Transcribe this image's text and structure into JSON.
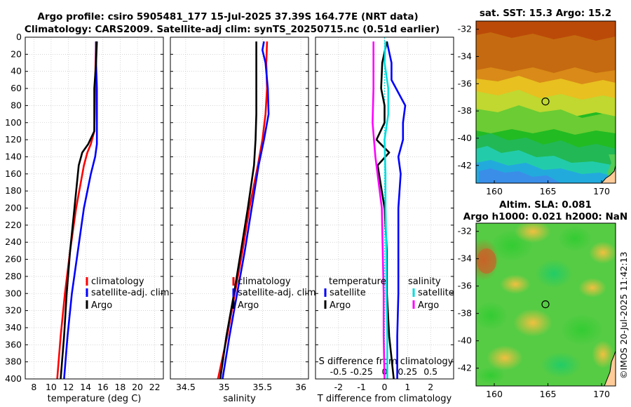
{
  "title": {
    "line1": "Argo profile: csiro 5905481_177 15-Jul-2025 37.39S 164.77E (NRT data)",
    "line2": "Climatology: CARS2009. Satellite-adj clim: synTS_20250715.nc (0.51d earlier)"
  },
  "watermark": "©IMOS 20-Jul-2025 11:42:13",
  "colors": {
    "climatology": "#ff0000",
    "satellite": "#0000ff",
    "argo": "#000000",
    "sal_sat": "#00dddd",
    "sal_argo": "#ff00ff"
  },
  "chart_data": [
    {
      "type": "line",
      "name": "temperature",
      "xlabel": "temperature (deg C)",
      "ylabel": "",
      "xlim": [
        7,
        23
      ],
      "ylim": [
        0,
        400
      ],
      "y_reversed": true,
      "xticks": [
        "8",
        "10",
        "12",
        "14",
        "16",
        "18",
        "20",
        "22"
      ],
      "yticks": [
        "0",
        "20",
        "40",
        "60",
        "80",
        "100",
        "120",
        "140",
        "160",
        "180",
        "200",
        "220",
        "240",
        "260",
        "280",
        "300",
        "320",
        "340",
        "360",
        "380",
        "400"
      ],
      "legend": [
        "climatology",
        "satellite-adj. clim",
        "Argo"
      ],
      "series": [
        {
          "name": "climatology",
          "color": "#ff0000",
          "depth": [
            5,
            30,
            60,
            90,
            110,
            125,
            135,
            150,
            200,
            250,
            300,
            350,
            400
          ],
          "values": [
            15.2,
            15.15,
            15.1,
            15.05,
            15.0,
            14.6,
            14.2,
            13.8,
            12.9,
            12.2,
            11.6,
            11.1,
            10.7
          ]
        },
        {
          "name": "satellite-adj. clim",
          "color": "#0000ff",
          "depth": [
            5,
            30,
            60,
            90,
            110,
            125,
            140,
            160,
            200,
            250,
            300,
            350,
            400
          ],
          "values": [
            15.2,
            15.2,
            15.3,
            15.3,
            15.3,
            15.3,
            15.1,
            14.6,
            13.8,
            13.1,
            12.4,
            11.9,
            11.5
          ]
        },
        {
          "name": "Argo",
          "color": "#000000",
          "depth": [
            5,
            30,
            60,
            90,
            110,
            125,
            135,
            150,
            200,
            250,
            300,
            350,
            400
          ],
          "values": [
            15.3,
            15.2,
            15.0,
            15.0,
            15.0,
            14.3,
            13.6,
            13.2,
            12.7,
            12.2,
            11.8,
            11.5,
            11.1
          ]
        }
      ]
    },
    {
      "type": "line",
      "name": "salinity",
      "xlabel": "salinity",
      "ylabel": "",
      "xlim": [
        34.3,
        36.1
      ],
      "ylim": [
        0,
        400
      ],
      "y_reversed": true,
      "xticks": [
        "34.5",
        "35",
        "35.5",
        "36"
      ],
      "legend": [
        "climatology",
        "satellite-adj. clim",
        "Argo"
      ],
      "series": [
        {
          "name": "climatology",
          "color": "#ff0000",
          "depth": [
            5,
            30,
            60,
            90,
            120,
            150,
            200,
            250,
            300,
            350,
            400
          ],
          "values": [
            35.56,
            35.55,
            35.56,
            35.54,
            35.5,
            35.44,
            35.33,
            35.24,
            35.14,
            35.04,
            34.92
          ]
        },
        {
          "name": "satellite-adj. clim",
          "color": "#0000ff",
          "depth": [
            5,
            15,
            30,
            60,
            90,
            120,
            150,
            200,
            250,
            300,
            350,
            400
          ],
          "values": [
            35.52,
            35.5,
            35.54,
            35.57,
            35.58,
            35.52,
            35.45,
            35.36,
            35.27,
            35.17,
            35.07,
            34.98
          ]
        },
        {
          "name": "Argo",
          "color": "#000000",
          "depth": [
            5,
            60,
            90,
            120,
            150,
            200,
            250,
            300,
            350,
            400
          ],
          "values": [
            35.42,
            35.42,
            35.42,
            35.41,
            35.39,
            35.31,
            35.22,
            35.13,
            35.03,
            34.95
          ]
        }
      ]
    },
    {
      "type": "line",
      "name": "difference",
      "xlabel": "T difference from climatology",
      "x2label": "S difference from climatology",
      "xlim": [
        -3,
        3
      ],
      "x2lim": [
        -0.75,
        0.75
      ],
      "ylim": [
        0,
        400
      ],
      "y_reversed": true,
      "xticks": [
        "-2",
        "-1",
        "0",
        "1",
        "2"
      ],
      "x2ticks": [
        "-0.5",
        "-0.25",
        "0",
        "0.25",
        "0.5"
      ],
      "legend_temperature": {
        "header": "temperature",
        "items": [
          "satellite",
          "Argo"
        ]
      },
      "legend_salinity": {
        "header": "salinity",
        "items": [
          "satellite",
          "Argo"
        ]
      },
      "series": [
        {
          "name": "T satellite",
          "color": "#0000ff",
          "depth": [
            5,
            30,
            50,
            80,
            100,
            120,
            140,
            160,
            200,
            250,
            300,
            350,
            400
          ],
          "values": [
            0.1,
            0.3,
            0.3,
            0.9,
            0.8,
            0.8,
            0.6,
            0.7,
            0.6,
            0.6,
            0.6,
            0.55,
            0.55
          ]
        },
        {
          "name": "T Argo",
          "color": "#000000",
          "depth": [
            5,
            30,
            60,
            80,
            100,
            120,
            135,
            150,
            200,
            250,
            300,
            350,
            400
          ],
          "values": [
            0.1,
            -0.1,
            -0.15,
            0.0,
            0.0,
            -0.35,
            0.2,
            -0.3,
            0.0,
            0.1,
            0.1,
            0.2,
            0.4
          ]
        },
        {
          "name": "S satellite",
          "color": "#00dddd",
          "depth": [
            5,
            30,
            60,
            90,
            120,
            160,
            200,
            250,
            300,
            350,
            400
          ],
          "values": [
            0.01,
            0.0,
            0.04,
            0.04,
            0.0,
            0.01,
            0.01,
            0.02,
            0.02,
            0.03,
            0.03
          ]
        },
        {
          "name": "S Argo",
          "color": "#ff00ff",
          "depth": [
            5,
            60,
            100,
            140,
            200,
            250,
            300,
            350,
            400
          ],
          "values": [
            -0.12,
            -0.12,
            -0.13,
            -0.1,
            -0.03,
            -0.02,
            -0.01,
            -0.01,
            0.0
          ]
        }
      ]
    }
  ],
  "maps": {
    "sst": {
      "title": "sat. SST: 15.3 Argo: 15.2",
      "yticks": [
        "-32",
        "-34",
        "-36",
        "-38",
        "-40",
        "-42"
      ],
      "xticks": [
        "160",
        "165",
        "170"
      ],
      "lon_range": [
        158.3,
        171.3
      ],
      "lat_range": [
        -43.3,
        -31.4
      ],
      "marker": {
        "lon": 164.77,
        "lat": -37.39
      }
    },
    "sla": {
      "title_line1": "Altim. SLA: 0.081",
      "title_line2": "Argo h1000: 0.021 h2000: NaN",
      "yticks": [
        "-32",
        "-34",
        "-36",
        "-38",
        "-40",
        "-42"
      ],
      "xticks": [
        "160",
        "165",
        "170"
      ],
      "lon_range": [
        158.3,
        171.3
      ],
      "lat_range": [
        -43.3,
        -31.4
      ],
      "marker": {
        "lon": 164.77,
        "lat": -37.39
      }
    }
  }
}
